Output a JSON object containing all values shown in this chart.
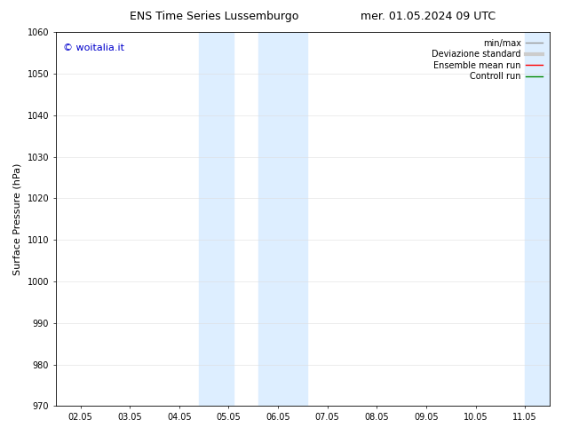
{
  "title": "ENS Time Series Lussemburgo",
  "title2": "mer. 01.05.2024 09 UTC",
  "ylabel": "Surface Pressure (hPa)",
  "ylim": [
    970,
    1060
  ],
  "yticks": [
    970,
    980,
    990,
    1000,
    1010,
    1020,
    1030,
    1040,
    1050,
    1060
  ],
  "xtick_labels": [
    "02.05",
    "03.05",
    "04.05",
    "05.05",
    "06.05",
    "07.05",
    "08.05",
    "09.05",
    "10.05",
    "11.05"
  ],
  "xtick_positions": [
    0,
    1,
    2,
    3,
    4,
    5,
    6,
    7,
    8,
    9
  ],
  "xlim": [
    -0.5,
    9.5
  ],
  "band1_start": 2.4,
  "band1_end": 3.1,
  "band2_start": 3.6,
  "band2_end": 4.6,
  "band3_start": 9.0,
  "band3_end": 9.5,
  "band_color": "#ddeeff",
  "copyright_text": "© woitalia.it",
  "copyright_color": "#0000cc",
  "legend_labels": [
    "min/max",
    "Deviazione standard",
    "Ensemble mean run",
    "Controll run"
  ],
  "legend_colors_lines": [
    "#999999",
    "#cccccc",
    "#ff0000",
    "#008800"
  ],
  "legend_linewidths": [
    1.0,
    3.0,
    1.0,
    1.0
  ],
  "bg_color": "#ffffff",
  "title_fontsize": 9,
  "tick_fontsize": 7,
  "ylabel_fontsize": 8,
  "legend_fontsize": 7,
  "copyright_fontsize": 8
}
